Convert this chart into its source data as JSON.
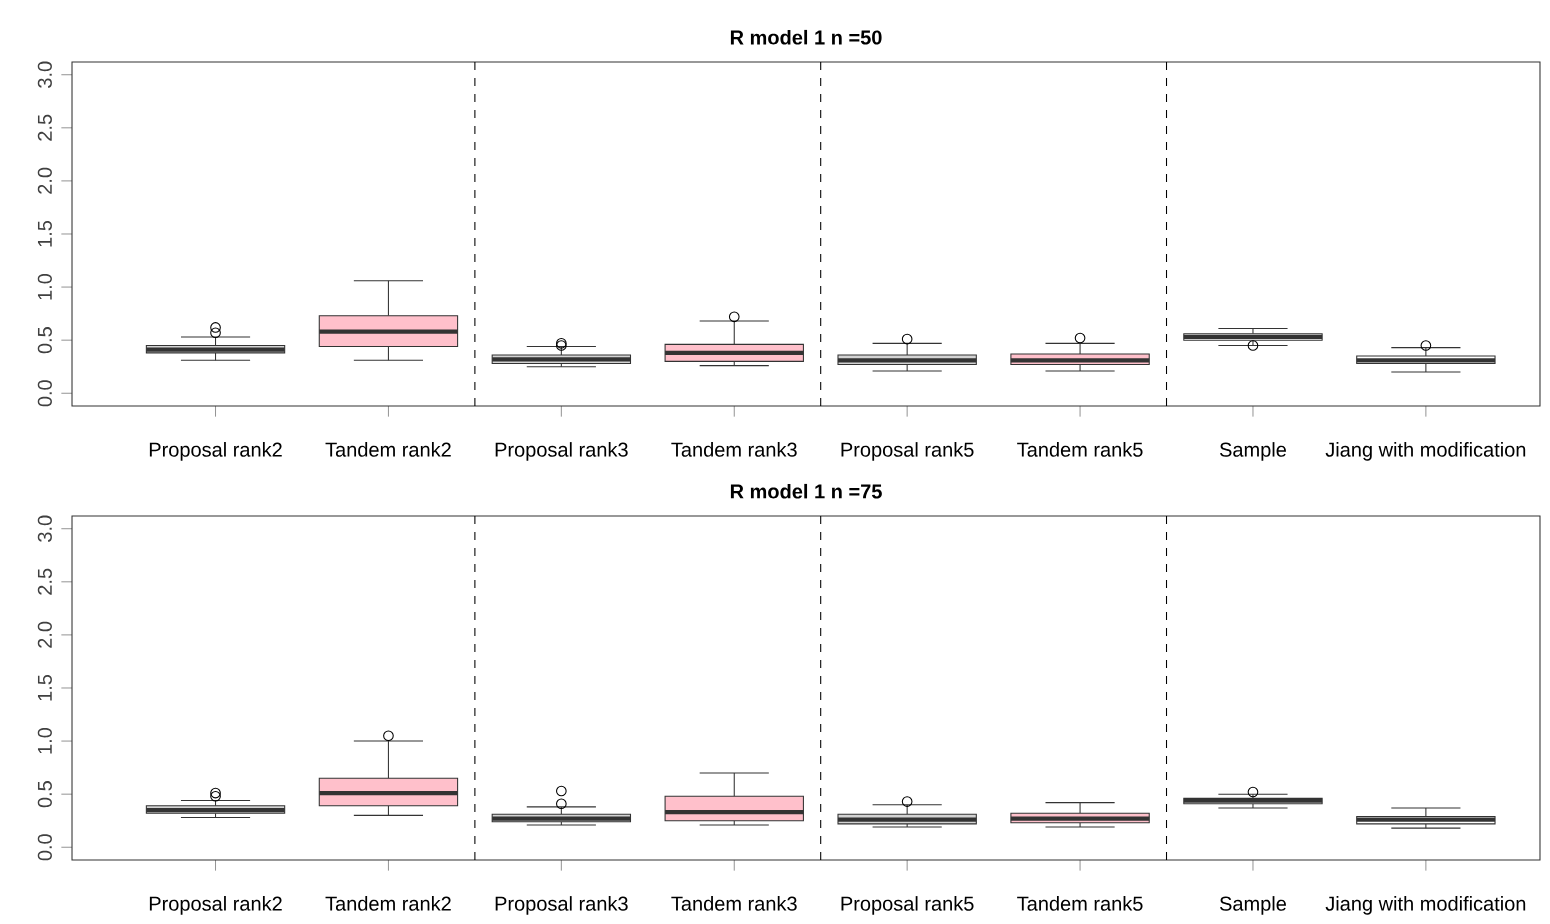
{
  "chart_data": [
    {
      "type": "box",
      "title": "R model 1  n =50",
      "categories": [
        "Proposal rank2",
        "Tandem rank2",
        "Proposal rank3",
        "Tandem rank3",
        "Proposal rank5",
        "Tandem rank5",
        "Sample",
        "Jiang with modification"
      ],
      "colors": [
        "#d3d3d3",
        "#ffc0cb",
        "#d3d3d3",
        "#ffc0cb",
        "#d3d3d3",
        "#ffc0cb",
        "#ffffff",
        "#ffffff"
      ],
      "boxes": [
        {
          "low": 0.31,
          "q1": 0.38,
          "median": 0.41,
          "q3": 0.45,
          "high": 0.53,
          "outliers": [
            0.62,
            0.57
          ]
        },
        {
          "low": 0.31,
          "q1": 0.44,
          "median": 0.58,
          "q3": 0.73,
          "high": 1.06
        },
        {
          "low": 0.25,
          "q1": 0.28,
          "median": 0.32,
          "q3": 0.36,
          "high": 0.44,
          "outliers": [
            0.47,
            0.45
          ]
        },
        {
          "low": 0.26,
          "q1": 0.3,
          "median": 0.38,
          "q3": 0.46,
          "high": 0.68,
          "outliers": [
            0.72
          ]
        },
        {
          "low": 0.21,
          "q1": 0.27,
          "median": 0.31,
          "q3": 0.36,
          "high": 0.47,
          "outliers": [
            0.51
          ]
        },
        {
          "low": 0.21,
          "q1": 0.27,
          "median": 0.31,
          "q3": 0.37,
          "high": 0.47,
          "outliers": [
            0.52
          ]
        },
        {
          "low": 0.45,
          "q1": 0.5,
          "median": 0.53,
          "q3": 0.56,
          "high": 0.61,
          "outliers": [
            0.45
          ]
        },
        {
          "low": 0.2,
          "q1": 0.28,
          "median": 0.31,
          "q3": 0.35,
          "high": 0.43,
          "outliers": [
            0.45
          ]
        }
      ],
      "ylim": [
        -0.12,
        3.12
      ],
      "yticks": [
        {
          "value": 0,
          "label": "0.0"
        },
        {
          "value": 0.5,
          "label": "0.5"
        },
        {
          "value": 1,
          "label": "1.0"
        },
        {
          "value": 1.5,
          "label": "1.5"
        },
        {
          "value": 2,
          "label": "2.0"
        },
        {
          "value": 2.5,
          "label": "2.5"
        },
        {
          "value": 3,
          "label": "3.0"
        }
      ]
    },
    {
      "type": "box",
      "title": "R model 1  n =75",
      "categories": [
        "Proposal rank2",
        "Tandem rank2",
        "Proposal rank3",
        "Tandem rank3",
        "Proposal rank5",
        "Tandem rank5",
        "Sample",
        "Jiang with modification"
      ],
      "colors": [
        "#d3d3d3",
        "#ffc0cb",
        "#d3d3d3",
        "#ffc0cb",
        "#d3d3d3",
        "#ffc0cb",
        "#ffffff",
        "#ffffff"
      ],
      "boxes": [
        {
          "low": 0.28,
          "q1": 0.32,
          "median": 0.35,
          "q3": 0.39,
          "high": 0.44,
          "outliers": [
            0.51,
            0.48
          ]
        },
        {
          "low": 0.3,
          "q1": 0.39,
          "median": 0.51,
          "q3": 0.65,
          "high": 1.0,
          "outliers": [
            1.05
          ]
        },
        {
          "low": 0.21,
          "q1": 0.24,
          "median": 0.27,
          "q3": 0.31,
          "high": 0.38,
          "outliers": [
            0.53,
            0.41
          ]
        },
        {
          "low": 0.21,
          "q1": 0.25,
          "median": 0.33,
          "q3": 0.48,
          "high": 0.7
        },
        {
          "low": 0.19,
          "q1": 0.22,
          "median": 0.26,
          "q3": 0.31,
          "high": 0.4,
          "outliers": [
            0.43
          ]
        },
        {
          "low": 0.19,
          "q1": 0.23,
          "median": 0.27,
          "q3": 0.32,
          "high": 0.42
        },
        {
          "low": 0.37,
          "q1": 0.41,
          "median": 0.44,
          "q3": 0.46,
          "high": 0.5,
          "outliers": [
            0.52
          ]
        },
        {
          "low": 0.18,
          "q1": 0.22,
          "median": 0.26,
          "q3": 0.29,
          "high": 0.37
        }
      ],
      "ylim": [
        -0.12,
        3.12
      ],
      "yticks": [
        {
          "value": 0,
          "label": "0.0"
        },
        {
          "value": 0.5,
          "label": "0.5"
        },
        {
          "value": 1,
          "label": "1.0"
        },
        {
          "value": 1.5,
          "label": "1.5"
        },
        {
          "value": 2,
          "label": "2.0"
        },
        {
          "value": 2.5,
          "label": "2.5"
        },
        {
          "value": 3,
          "label": "3.0"
        }
      ]
    }
  ]
}
